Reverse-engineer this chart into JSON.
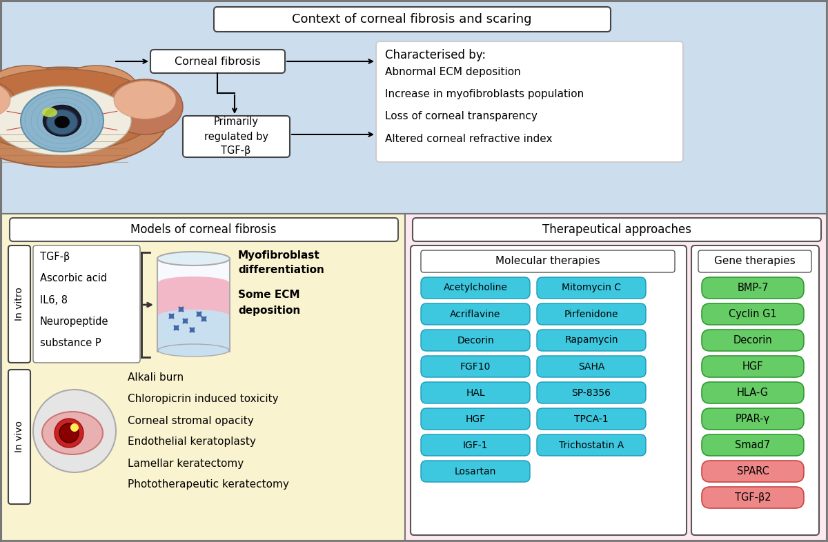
{
  "title_top": "Context of corneal fibrosis and scaring",
  "bg_top": "#ccdded",
  "bg_bottom_left": "#faf3d0",
  "bg_bottom_right": "#fce8ee",
  "border_color": "#888888",
  "corneal_fibrosis_box": "Corneal fibrosis",
  "primarily_box": "Primarily\nregulated by\nTGF-β",
  "characterised_title": "Characterised by:",
  "characterised_items": [
    "Abnormal ECM deposition",
    "Increase in myofibroblasts population",
    "Loss of corneal transparency",
    "Altered corneal refractive index"
  ],
  "models_title": "Models of corneal fibrosis",
  "in_vitro_label": "In vitro",
  "in_vitro_items": [
    "TGF-β",
    "Ascorbic acid",
    "IL6, 8",
    "Neuropeptide",
    "substance P"
  ],
  "in_vitro_results_line1": "Myofibroblast",
  "in_vitro_results_line2": "differentiation",
  "in_vitro_results_line3": "Some ECM",
  "in_vitro_results_line4": "deposition",
  "in_vivo_label": "In vivo",
  "in_vivo_items": [
    "Alkali burn",
    "Chloropicrin induced toxicity",
    "Corneal stromal opacity",
    "Endothelial keratoplasty",
    "Lamellar keratectomy",
    "Phototherapeutic keratectomy"
  ],
  "therapeutical_title": "Therapeutical approaches",
  "molecular_title": "Molecular therapies",
  "molecular_col1": [
    "Acetylcholine",
    "Acriflavine",
    "Decorin",
    "FGF10",
    "HAL",
    "HGF",
    "IGF-1",
    "Losartan"
  ],
  "molecular_col2": [
    "Mitomycin C",
    "Pirfenidone",
    "Rapamycin",
    "SAHA",
    "SP-8356",
    "TPCA-1",
    "Trichostatin A",
    ""
  ],
  "molecular_color": "#3ec8e0",
  "molecular_edge": "#1a9ab8",
  "gene_title": "Gene therapies",
  "gene_green": [
    "BMP-7",
    "Cyclin G1",
    "Decorin",
    "HGF",
    "HLA-G",
    "PPAR-γ",
    "Smad7"
  ],
  "gene_red": [
    "SPARC",
    "TGF-β2"
  ],
  "gene_green_color": "#66cc66",
  "gene_green_edge": "#339933",
  "gene_red_color": "#ee8888",
  "gene_red_edge": "#cc4444",
  "box_white": "#ffffff",
  "text_dark": "#111111"
}
